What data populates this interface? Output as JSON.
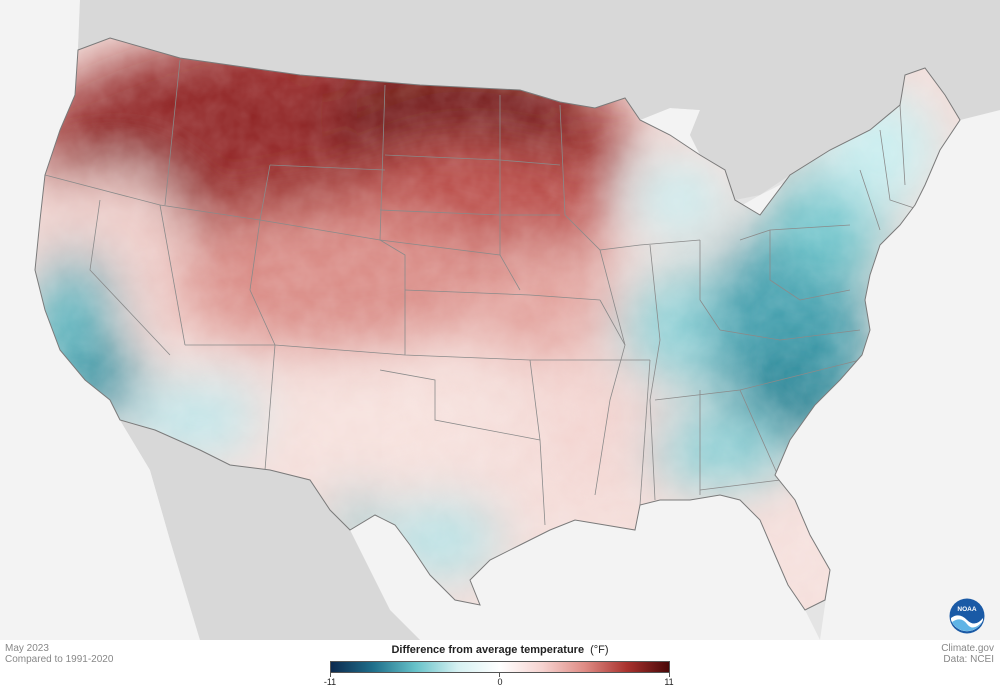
{
  "map": {
    "title": "May 2023",
    "subtitle": "Compared to 1991-2020",
    "region": "Contiguous United States",
    "variable": "Temperature anomaly",
    "pattern_summary": [
      {
        "region": "Northern Plains / Northwest",
        "anomaly": "warm",
        "level": 0.9
      },
      {
        "region": "Central Plains",
        "anomaly": "warm",
        "level": 0.5
      },
      {
        "region": "Southwest / Texas",
        "anomaly": "near average",
        "level": 0.1
      },
      {
        "region": "Southeast / Mid-Atlantic",
        "anomaly": "cool",
        "level": -0.6
      },
      {
        "region": "Coastal California",
        "anomaly": "cool",
        "level": -0.5
      },
      {
        "region": "Northeast",
        "anomaly": "cool",
        "level": -0.4
      }
    ],
    "colors": {
      "background_land": "#dcdcdc",
      "ocean_lakes": "#f2f2f2",
      "state_borders": "#8a8a8a"
    }
  },
  "legend": {
    "title": "Difference from average temperature",
    "unit": "(°F)",
    "min_label": "-11",
    "mid_label": "0",
    "max_label": "11",
    "min": -11,
    "max": 11,
    "colors": [
      "#0d2a4f",
      "#1f6f8b",
      "#67c2c9",
      "#d6f1f2",
      "#ffffff",
      "#f6d3d0",
      "#df8c85",
      "#a9322e",
      "#4a0808"
    ]
  },
  "credits": {
    "source_site": "Climate.gov",
    "data_source": "Data: NCEI"
  },
  "logo": {
    "icon": "noaa-logo",
    "text": "NOAA"
  }
}
